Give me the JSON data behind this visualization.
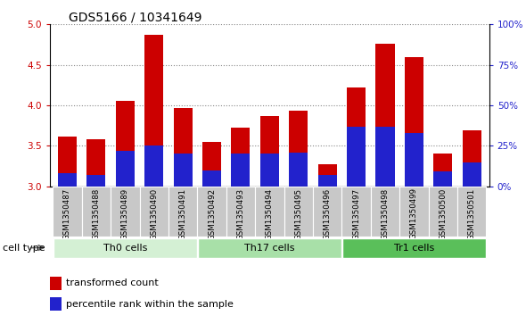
{
  "title": "GDS5166 / 10341649",
  "samples": [
    "GSM1350487",
    "GSM1350488",
    "GSM1350489",
    "GSM1350490",
    "GSM1350491",
    "GSM1350492",
    "GSM1350493",
    "GSM1350494",
    "GSM1350495",
    "GSM1350496",
    "GSM1350497",
    "GSM1350498",
    "GSM1350499",
    "GSM1350500",
    "GSM1350501"
  ],
  "transformed_count": [
    3.61,
    3.58,
    4.05,
    4.87,
    3.97,
    3.55,
    3.72,
    3.87,
    3.93,
    3.27,
    4.22,
    4.76,
    4.6,
    3.4,
    3.69
  ],
  "percentile_rank_pct": [
    8,
    7,
    22,
    25,
    20,
    10,
    20,
    20,
    21,
    7,
    37,
    37,
    33,
    9,
    15
  ],
  "cell_types": [
    {
      "label": "Th0 cells",
      "start": 0,
      "end": 5,
      "color": "#d4f0d4"
    },
    {
      "label": "Th17 cells",
      "start": 5,
      "end": 10,
      "color": "#a8e0a8"
    },
    {
      "label": "Tr1 cells",
      "start": 10,
      "end": 15,
      "color": "#5abf5a"
    }
  ],
  "ylim_left": [
    3.0,
    5.0
  ],
  "ylim_right": [
    0,
    100
  ],
  "yticks_left": [
    3.0,
    3.5,
    4.0,
    4.5,
    5.0
  ],
  "yticks_right": [
    0,
    25,
    50,
    75,
    100
  ],
  "ytick_right_labels": [
    "0%",
    "25%",
    "50%",
    "75%",
    "100%"
  ],
  "bar_color": "#cc0000",
  "percentile_color": "#2222cc",
  "background_color": "#c8c8c8",
  "plot_bg_color": "#ffffff",
  "left_tick_color": "#cc0000",
  "right_tick_color": "#2222cc",
  "title_fontsize": 10,
  "tick_fontsize": 7.5,
  "label_fontsize": 8
}
